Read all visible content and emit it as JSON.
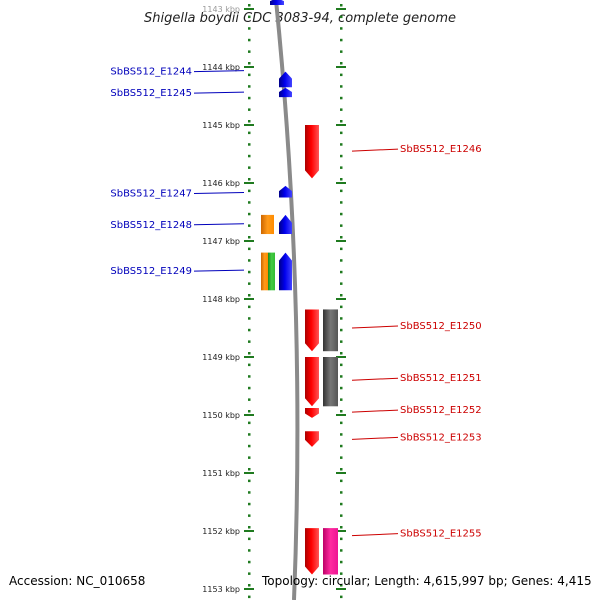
{
  "title": "Shigella boydii CDC 3083-94, complete genome",
  "accession": "Accession: NC_010658",
  "summary": "Topology: circular; Length: 4,615,997 bp; Genes: 4,415",
  "colors": {
    "scale_tick": "#1f7a1f",
    "backbone": "#808080",
    "left_label": "#0000bb",
    "right_label": "#cc0000"
  },
  "scale_labels": [
    "1143 kbp",
    "1144 kbp",
    "1145 kbp",
    "1146 kbp",
    "1147 kbp",
    "1148 kbp",
    "1149 kbp",
    "1150 kbp",
    "1151 kbp",
    "1152 kbp",
    "1153 kbp"
  ],
  "genes_left": [
    {
      "label": "SbBS512_E1244",
      "color": "#0000ee",
      "start_kbp": 1144.08,
      "end_kbp": 1144.35,
      "track": "near",
      "pointer_kbp": 1144.08
    },
    {
      "label": "SbBS512_E1245",
      "color": "#0000ee",
      "start_kbp": 1144.36,
      "end_kbp": 1144.52,
      "track": "near",
      "pointer_kbp": 1144.45
    },
    {
      "label": "SbBS512_E1247",
      "color": "#0000ee",
      "start_kbp": 1146.05,
      "end_kbp": 1146.25,
      "track": "near",
      "pointer_kbp": 1146.18
    },
    {
      "label": "SbBS512_E1248",
      "color": "#0000ee",
      "start_kbp": 1146.55,
      "end_kbp": 1146.88,
      "track": "near",
      "pointer_kbp": 1146.72
    },
    {
      "label": "SbBS512_E1249",
      "color": "#0000ee",
      "start_kbp": 1147.2,
      "end_kbp": 1147.85,
      "track": "near",
      "pointer_kbp": 1147.52
    }
  ],
  "genes_left_far": [
    {
      "color": "#ff8c00",
      "start_kbp": 1146.55,
      "end_kbp": 1146.88
    },
    {
      "color": "#ff8c00",
      "start_kbp": 1147.2,
      "end_kbp": 1147.85
    },
    {
      "color": "#33bb33",
      "start_kbp": 1147.2,
      "end_kbp": 1147.85
    }
  ],
  "genes_right": [
    {
      "label": "SbBS512_E1246",
      "color": "#ee0000",
      "start_kbp": 1145.0,
      "end_kbp": 1145.92,
      "pointer_kbp": 1145.45
    },
    {
      "label": "SbBS512_E1250",
      "color": "#ee0000",
      "start_kbp": 1148.18,
      "end_kbp": 1148.9,
      "pointer_kbp": 1148.5
    },
    {
      "label": "SbBS512_E1251",
      "color": "#ee0000",
      "start_kbp": 1149.0,
      "end_kbp": 1149.85,
      "pointer_kbp": 1149.4
    },
    {
      "label": "SbBS512_E1252",
      "color": "#ee0000",
      "start_kbp": 1149.88,
      "end_kbp": 1150.05,
      "pointer_kbp": 1149.95
    },
    {
      "label": "SbBS512_E1253",
      "color": "#ee0000",
      "start_kbp": 1150.28,
      "end_kbp": 1150.55,
      "pointer_kbp": 1150.42
    },
    {
      "label": "SbBS512_E1255",
      "color": "#ee0000",
      "start_kbp": 1151.95,
      "end_kbp": 1152.75,
      "pointer_kbp": 1152.08
    }
  ],
  "genes_right_far": [
    {
      "color": "#555555",
      "start_kbp": 1148.18,
      "end_kbp": 1148.9
    },
    {
      "color": "#555555",
      "start_kbp": 1149.0,
      "end_kbp": 1149.85
    },
    {
      "color": "#ee1493",
      "start_kbp": 1151.95,
      "end_kbp": 1152.75
    }
  ]
}
